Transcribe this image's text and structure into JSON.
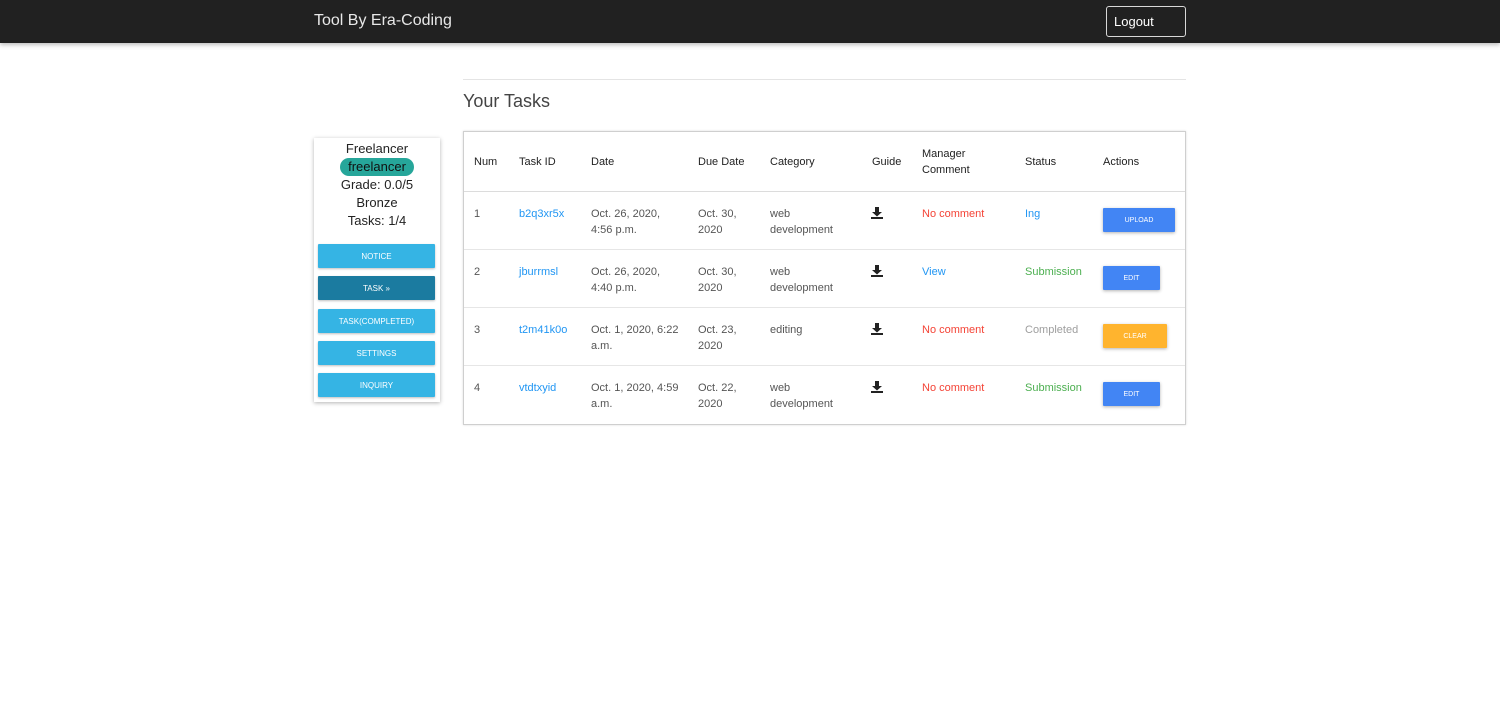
{
  "header": {
    "brand": "Tool By Era-Coding",
    "logout_label": "Logout"
  },
  "page": {
    "title": "Your Tasks"
  },
  "profile": {
    "name": "Freelancer",
    "role": "freelancer",
    "grade": "Grade: 0.0/5",
    "rank": "Bronze",
    "tasks": "Tasks: 1/4"
  },
  "sidebar": {
    "items": [
      {
        "label": "NOTICE"
      },
      {
        "label": "TASK »"
      },
      {
        "label": "TASK(COMPLETED)"
      },
      {
        "label": "SETTINGS"
      },
      {
        "label": "INQUIRY"
      }
    ]
  },
  "table": {
    "headers": {
      "num": "Num",
      "task_id": "Task ID",
      "date": "Date",
      "due_date": "Due Date",
      "category": "Category",
      "guide": "Guide",
      "manager_comment": "Manager Comment",
      "status": "Status",
      "actions": "Actions"
    },
    "rows": [
      {
        "num": "1",
        "task_id": "b2q3xr5x",
        "date": "Oct. 26, 2020, 4:56 p.m.",
        "due_date": "Oct. 30, 2020",
        "category": "web development",
        "guide_icon": "download-icon",
        "comment": "No comment",
        "status": "Ing",
        "action": "UPLOAD"
      },
      {
        "num": "2",
        "task_id": "jburrmsl",
        "date": "Oct. 26, 2020, 4:40 p.m.",
        "due_date": "Oct. 30, 2020",
        "category": "web development",
        "guide_icon": "download-icon",
        "comment": "View",
        "status": "Submission",
        "action": "EDIT"
      },
      {
        "num": "3",
        "task_id": "t2m41k0o",
        "date": "Oct. 1, 2020, 6:22 a.m.",
        "due_date": "Oct. 23, 2020",
        "category": "editing",
        "guide_icon": "download-icon",
        "comment": "No comment",
        "status": "Completed",
        "action": "CLEAR"
      },
      {
        "num": "4",
        "task_id": "vtdtxyid",
        "date": "Oct. 1, 2020, 4:59 a.m.",
        "due_date": "Oct. 22, 2020",
        "category": "web development",
        "guide_icon": "download-icon",
        "comment": "No comment",
        "status": "Submission",
        "action": "EDIT"
      }
    ]
  },
  "colors": {
    "topbar": "#212121",
    "link": "#2196f3",
    "no_comment": "#f44336",
    "submission": "#4caf50",
    "completed": "#9e9e9e",
    "sidebar_button": "#35b4e4",
    "sidebar_active": "#1b7ba0",
    "action_blue": "#4285f4",
    "action_orange": "#ffb42e",
    "role_badge": "#26a69a"
  }
}
